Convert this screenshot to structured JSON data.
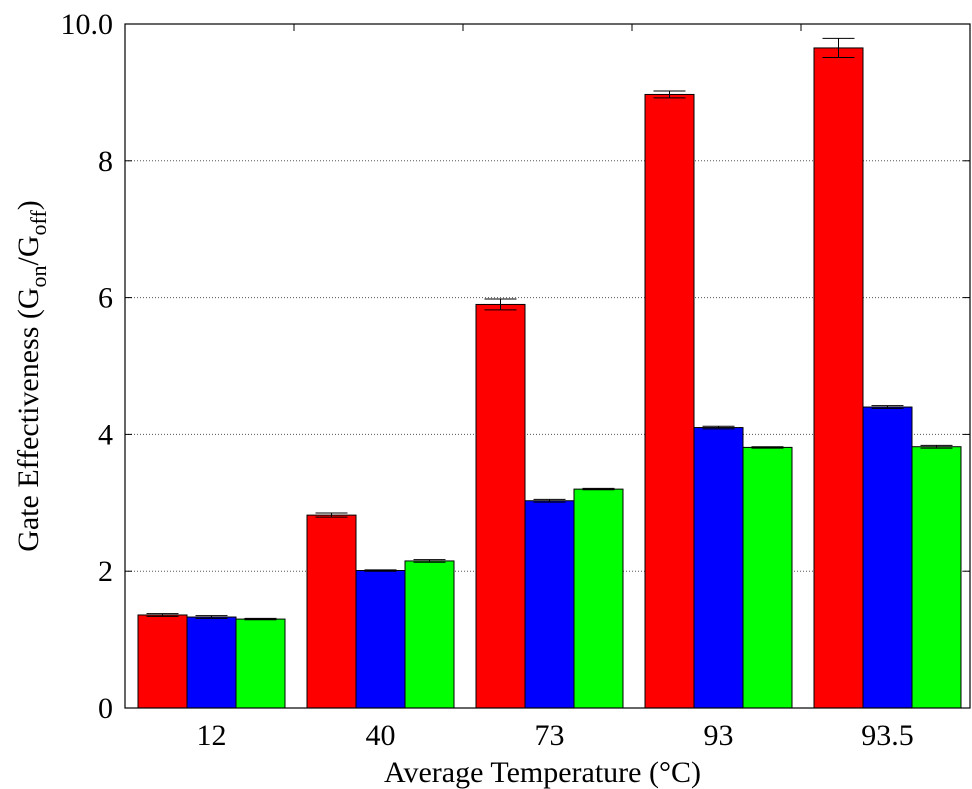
{
  "chart_data": {
    "type": "bar",
    "title": "",
    "xlabel": "Average Temperature (°C)",
    "ylabel": {
      "prefix": "Gate Effectiveness  (G",
      "sub1": "on",
      "mid": "/G",
      "sub2": "off",
      "suffix": ")"
    },
    "categories": [
      "12",
      "40",
      "73",
      "93",
      "93.5"
    ],
    "ylim": [
      0,
      10
    ],
    "yticks": [
      0,
      2,
      4,
      6,
      8,
      10
    ],
    "grid": "horizontal dotted",
    "legend": "none",
    "series": [
      {
        "color": "#ff0000",
        "values": [
          1.36,
          2.82,
          5.9,
          8.97,
          9.65
        ],
        "errors": [
          0.02,
          0.03,
          0.08,
          0.05,
          0.14
        ]
      },
      {
        "color": "#0000ff",
        "values": [
          1.33,
          2.01,
          3.03,
          4.1,
          4.4
        ],
        "errors": [
          0.02,
          0.01,
          0.02,
          0.02,
          0.02
        ]
      },
      {
        "color": "#00ff00",
        "values": [
          1.3,
          2.15,
          3.2,
          3.81,
          3.82
        ],
        "errors": [
          0.01,
          0.02,
          0.01,
          0.01,
          0.02
        ]
      }
    ]
  }
}
